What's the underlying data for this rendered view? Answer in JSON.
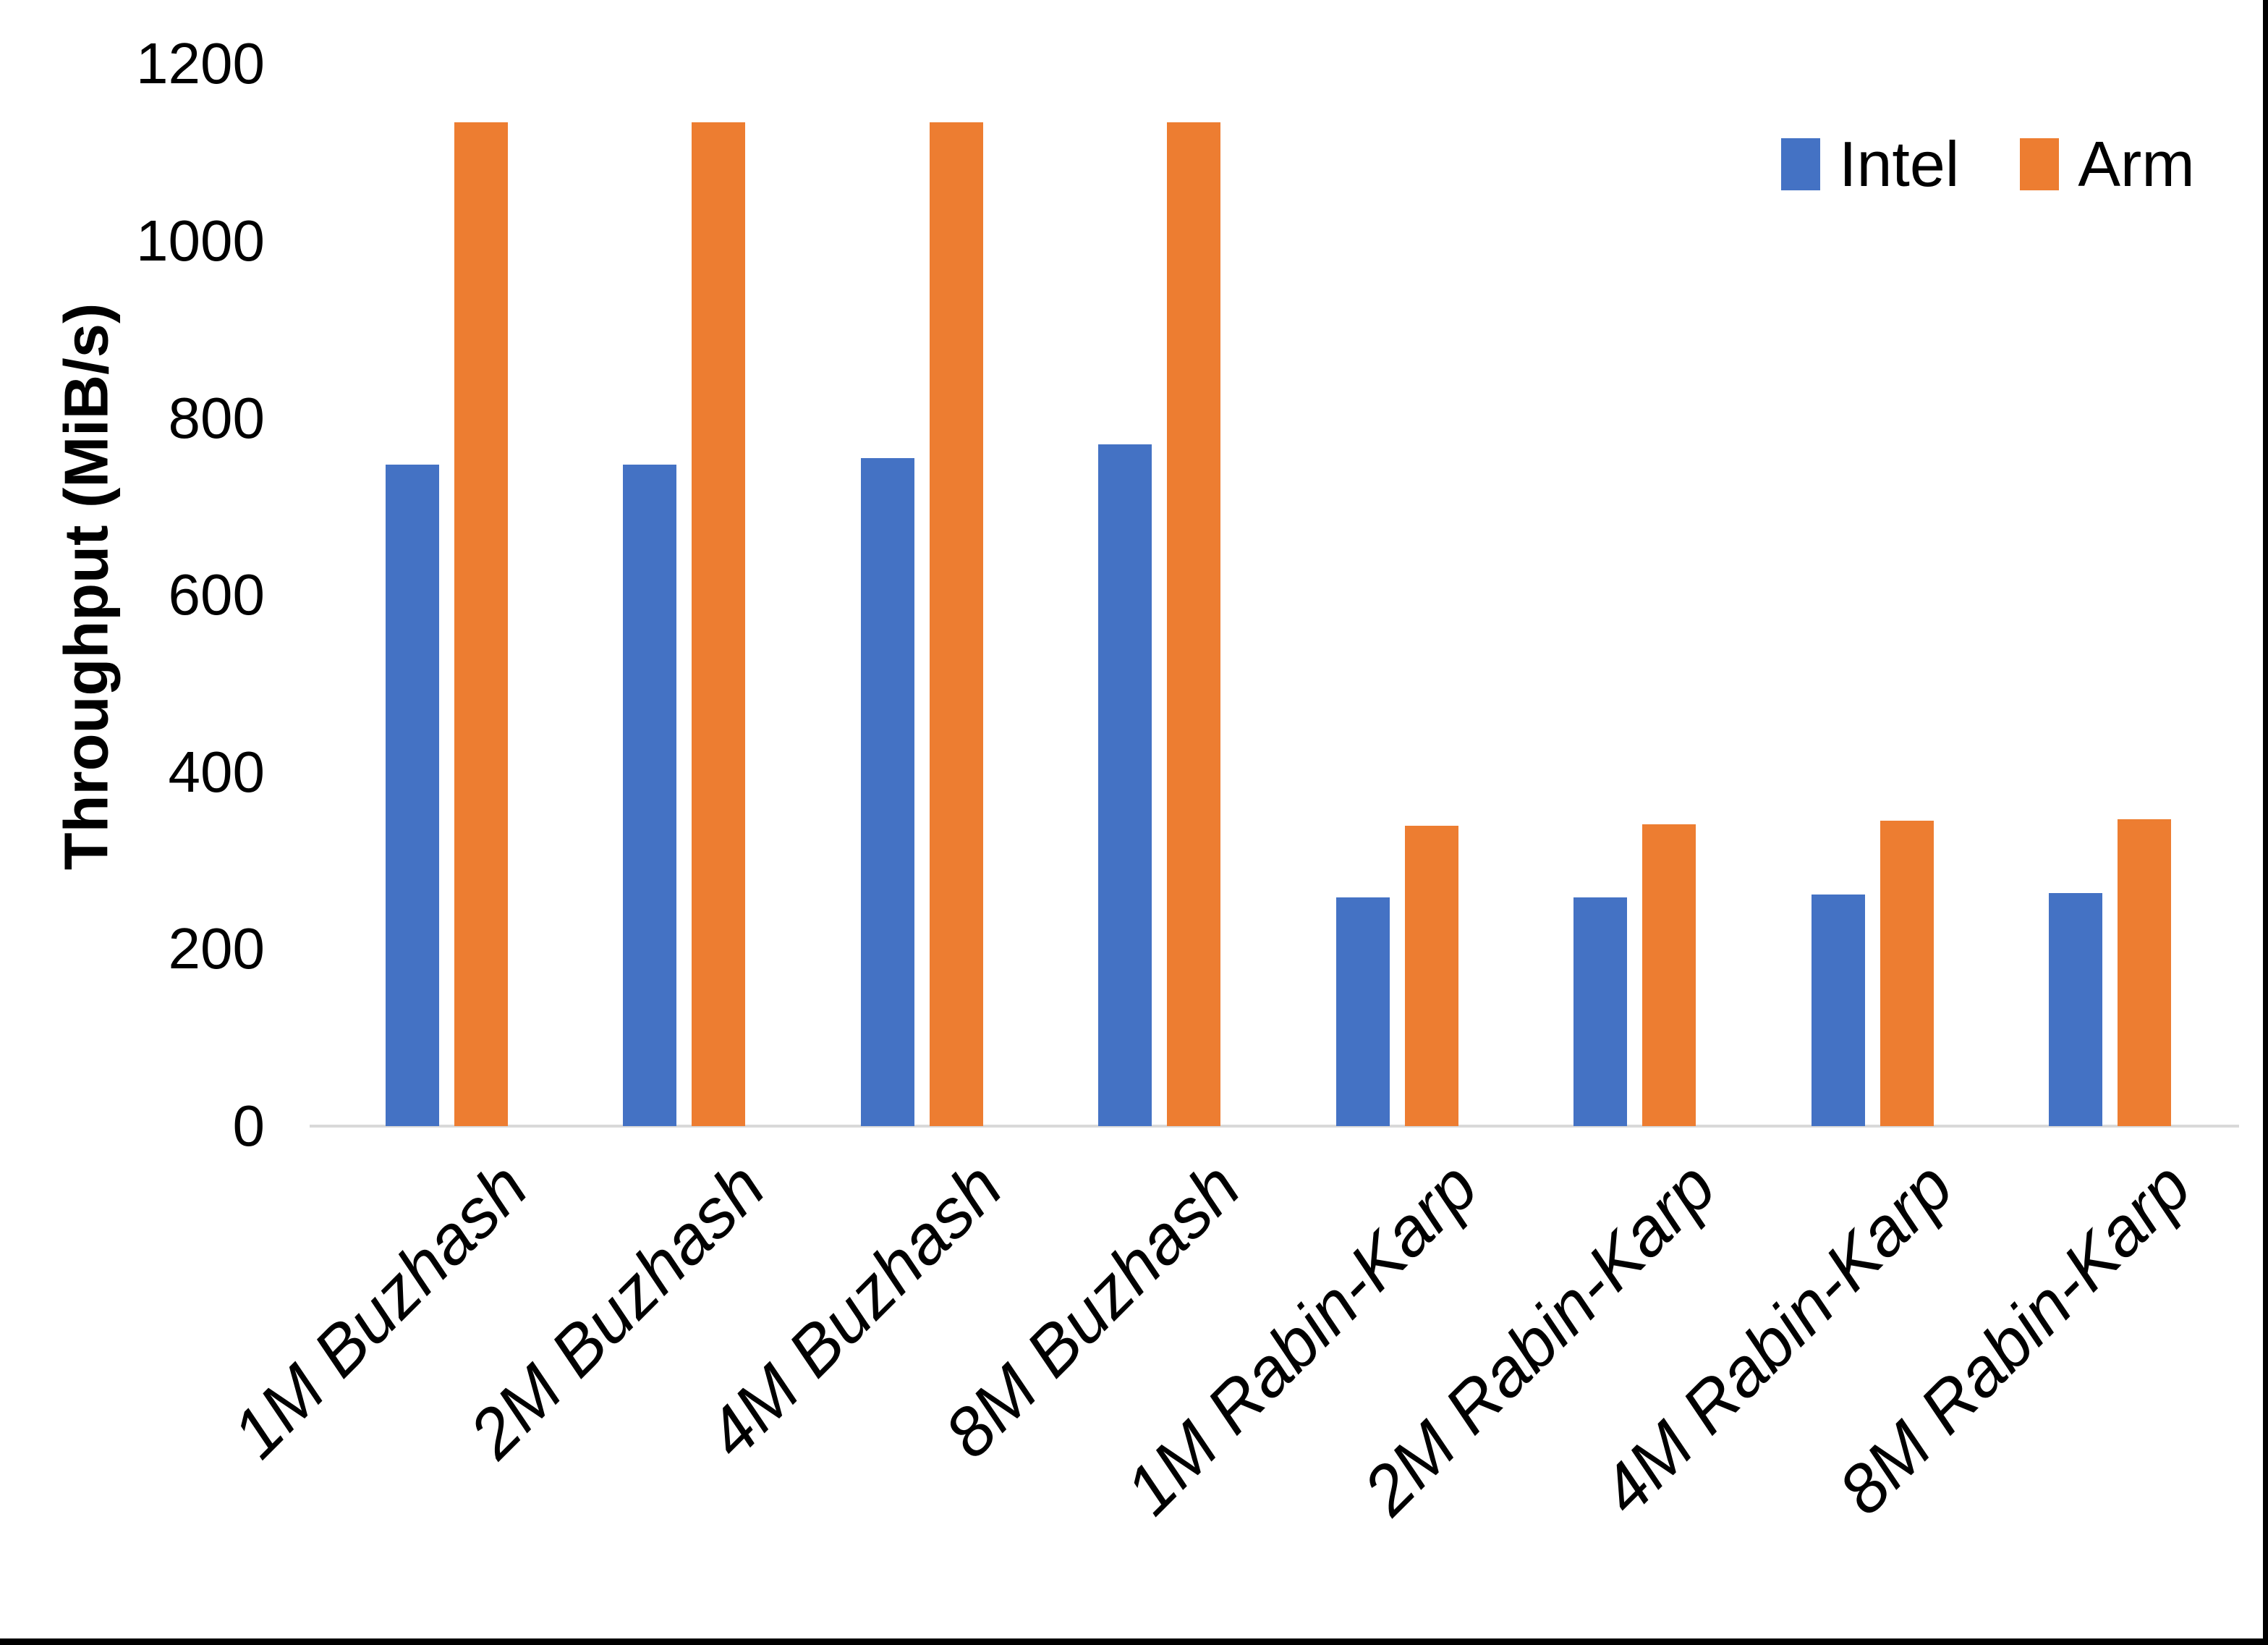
{
  "chart_data": {
    "type": "bar",
    "title": "",
    "ylabel": "Throughput (MiB/s)",
    "xlabel": "",
    "categories": [
      "1M Buzhash",
      "2M Buzhash",
      "4M Buzhash",
      "8M Buzhash",
      "1M Rabin-Karp",
      "2M Rabin-Karp",
      "4M Rabin-Karp",
      "8M Rabin-Karp"
    ],
    "series": [
      {
        "name": "Intel",
        "color": "#4472C4",
        "values": [
          747,
          747,
          755,
          770,
          258,
          258,
          262,
          263
        ]
      },
      {
        "name": "Arm",
        "color": "#ED7D31",
        "values": [
          1134,
          1134,
          1134,
          1134,
          339,
          341,
          345,
          347
        ]
      }
    ],
    "ylim": [
      0,
      1200
    ],
    "ytick_step": 200,
    "ytick_labels": [
      "0",
      "200",
      "400",
      "600",
      "800",
      "1000",
      "1200"
    ],
    "grid": false,
    "legend_position": "top-right",
    "axis_line_color": "#D9D9D9",
    "category_label_style": "italic, rotated 45 degrees",
    "background": "#FFFFFF"
  },
  "frame": {
    "right_border_color": "#000000",
    "bottom_border_color": "#000000"
  }
}
